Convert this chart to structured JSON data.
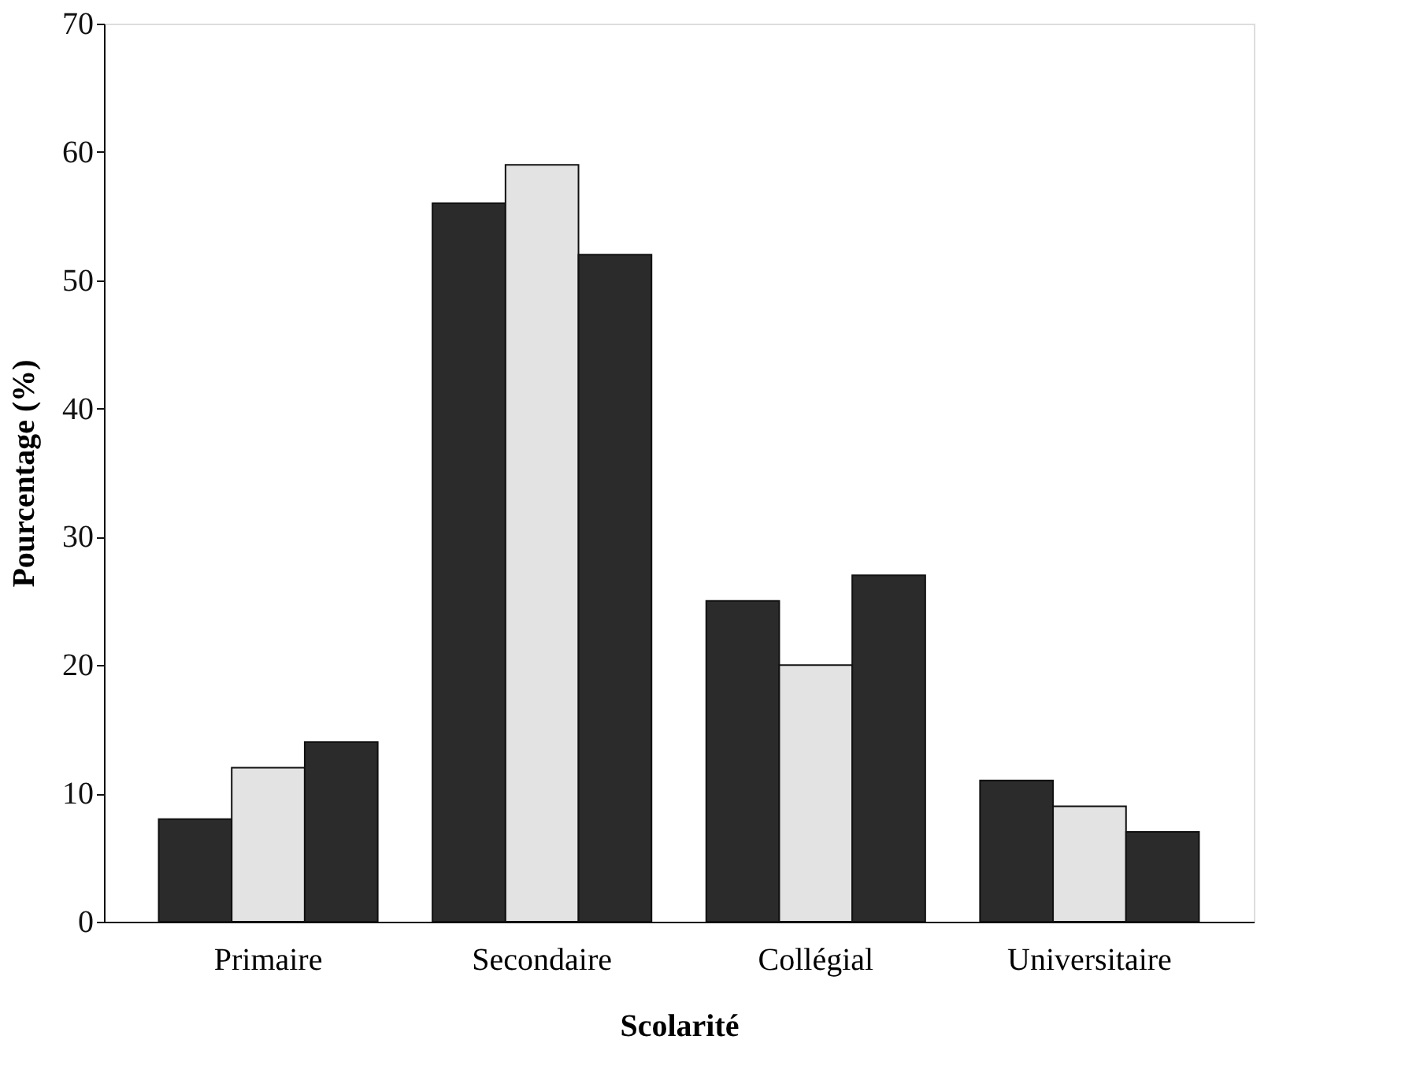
{
  "chart_data": {
    "type": "bar",
    "xlabel": "Scolarité",
    "ylabel": "Pourcentage (%)",
    "categories": [
      "Primaire",
      "Secondaire",
      "Collégial",
      "Universitaire"
    ],
    "series": [
      {
        "color": "#2b2b2b",
        "values": [
          8,
          56,
          25,
          11
        ]
      },
      {
        "color": "#e3e3e3",
        "values": [
          12,
          59,
          20,
          9
        ]
      },
      {
        "color": "#2b2b2b",
        "values": [
          14,
          52,
          27,
          7
        ]
      }
    ],
    "ylim": [
      0,
      70
    ],
    "yticks": [
      0,
      10,
      20,
      30,
      40,
      50,
      60,
      70
    ],
    "grid": false
  }
}
